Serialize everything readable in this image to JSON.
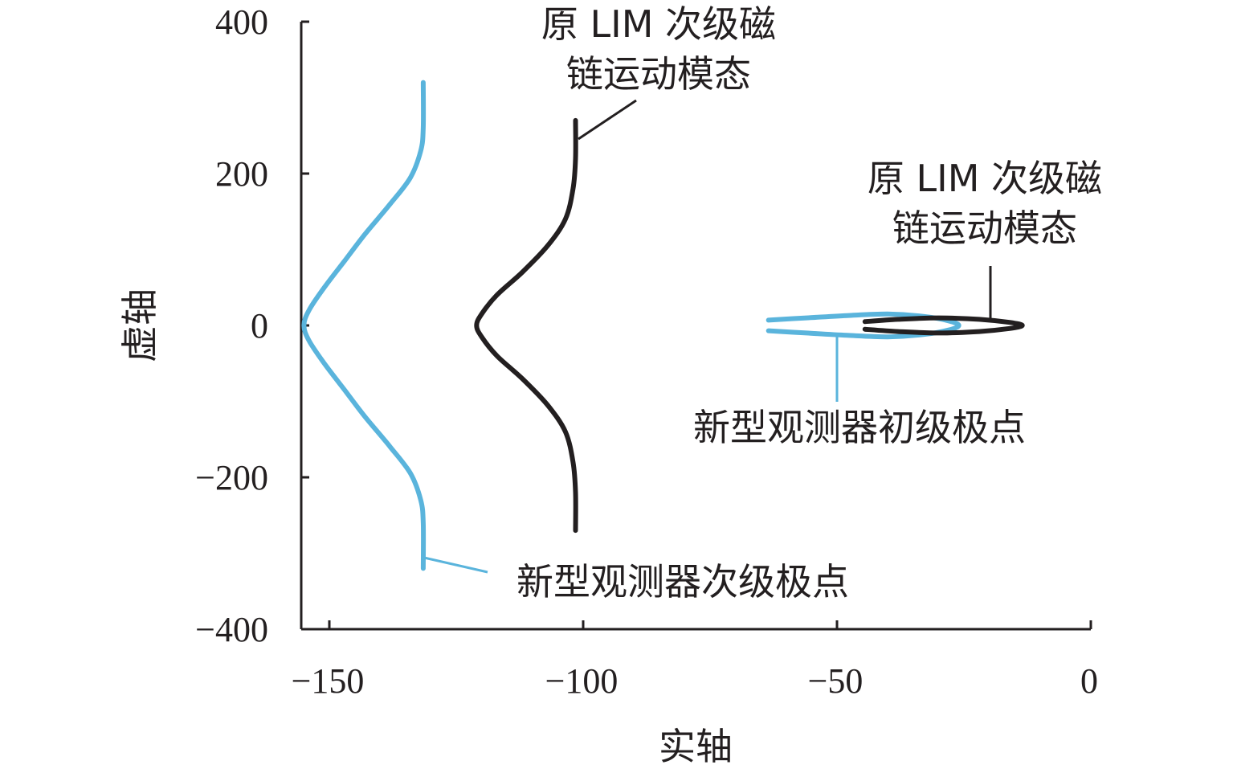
{
  "chart_data": {
    "type": "line",
    "xlabel": "实轴",
    "ylabel": "虚轴",
    "xlim": [
      -155,
      0
    ],
    "ylim": [
      -400,
      400
    ],
    "x_ticks": [
      -150,
      -100,
      -50,
      0
    ],
    "x_tick_labels": [
      "−150",
      "−100",
      "−50",
      "0"
    ],
    "y_ticks": [
      400,
      200,
      0,
      -200,
      -400
    ],
    "y_tick_labels": [
      "400",
      "200",
      "0",
      "−200",
      "−400"
    ],
    "colors": {
      "new_observer": "#5ab4dc",
      "original": "#231f20",
      "axis": "#231f20"
    },
    "series": [
      {
        "color": "#5ab4dc",
        "points": [
          [
            -131.5,
            320
          ],
          [
            -131.5,
            260
          ],
          [
            -132,
            230
          ],
          [
            -134,
            195
          ],
          [
            -138,
            160
          ],
          [
            -143,
            120
          ],
          [
            -147,
            85
          ],
          [
            -151,
            50
          ],
          [
            -154,
            20
          ],
          [
            -155,
            0
          ],
          [
            -154,
            -20
          ],
          [
            -151,
            -50
          ],
          [
            -147,
            -85
          ],
          [
            -143,
            -120
          ],
          [
            -138,
            -160
          ],
          [
            -134,
            -195
          ],
          [
            -132,
            -230
          ],
          [
            -131.5,
            -260
          ],
          [
            -131.5,
            -320
          ]
        ]
      },
      {
        "color": "#231f20",
        "points": [
          [
            -101.5,
            270
          ],
          [
            -101.5,
            220
          ],
          [
            -102,
            180
          ],
          [
            -103.5,
            140
          ],
          [
            -107,
            105
          ],
          [
            -112,
            70
          ],
          [
            -117,
            40
          ],
          [
            -120,
            15
          ],
          [
            -121,
            0
          ],
          [
            -120,
            -15
          ],
          [
            -117,
            -40
          ],
          [
            -112,
            -70
          ],
          [
            -107,
            -105
          ],
          [
            -103.5,
            -140
          ],
          [
            -102,
            -180
          ],
          [
            -101.5,
            -220
          ],
          [
            -101.5,
            -270
          ]
        ]
      },
      {
        "color": "#5ab4dc",
        "points": [
          [
            -63.5,
            7
          ],
          [
            -56,
            10
          ],
          [
            -48,
            13
          ],
          [
            -40,
            15
          ],
          [
            -33,
            12
          ],
          [
            -28,
            6
          ],
          [
            -26,
            0
          ],
          [
            -28,
            -6
          ],
          [
            -33,
            -12
          ],
          [
            -40,
            -15
          ],
          [
            -48,
            -13
          ],
          [
            -56,
            -10
          ],
          [
            -63.5,
            -7
          ]
        ]
      },
      {
        "color": "#231f20",
        "points": [
          [
            -44.5,
            5
          ],
          [
            -38,
            8
          ],
          [
            -30,
            10
          ],
          [
            -22,
            8
          ],
          [
            -16,
            4
          ],
          [
            -13.5,
            0
          ],
          [
            -16,
            -4
          ],
          [
            -22,
            -8
          ],
          [
            -30,
            -10
          ],
          [
            -38,
            -8
          ],
          [
            -44.5,
            -5
          ]
        ]
      }
    ],
    "annotations": [
      {
        "lines": [
          "原 LIM 次级磁",
          "链运动模态"
        ]
      },
      {
        "lines": [
          "原 LIM 次级磁",
          "链运动模态"
        ]
      },
      {
        "lines": [
          "新型观测器初级极点"
        ]
      },
      {
        "lines": [
          "新型观测器次级极点"
        ]
      }
    ]
  }
}
